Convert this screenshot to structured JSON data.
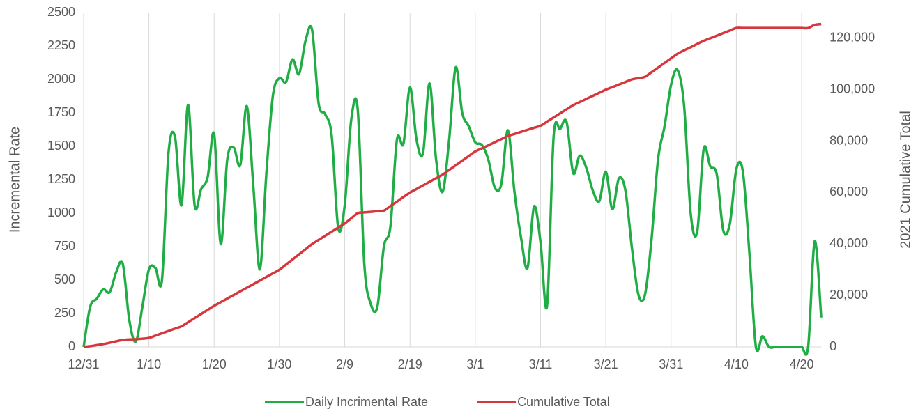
{
  "chart_data": {
    "type": "line",
    "categories": [
      "12/31",
      null,
      null,
      null,
      null,
      null,
      null,
      null,
      null,
      null,
      "1/10",
      null,
      null,
      null,
      null,
      null,
      null,
      null,
      null,
      null,
      "1/20",
      null,
      null,
      null,
      null,
      null,
      null,
      null,
      null,
      null,
      "1/30",
      null,
      null,
      null,
      null,
      null,
      null,
      null,
      null,
      null,
      "2/9",
      null,
      null,
      null,
      null,
      null,
      null,
      null,
      null,
      null,
      "2/19",
      null,
      null,
      null,
      null,
      null,
      null,
      null,
      null,
      null,
      "3/1",
      null,
      null,
      null,
      null,
      null,
      null,
      null,
      null,
      null,
      "3/11",
      null,
      null,
      null,
      null,
      null,
      null,
      null,
      null,
      null,
      "3/21",
      null,
      null,
      null,
      null,
      null,
      null,
      null,
      null,
      null,
      "3/31",
      null,
      null,
      null,
      null,
      null,
      null,
      null,
      null,
      null,
      "4/10",
      null,
      null,
      null,
      null,
      null,
      null,
      null,
      null,
      null,
      "4/20",
      null,
      null,
      null
    ],
    "series": [
      {
        "name": "Daily Incrimental Rate",
        "color": "#21ad45",
        "axis": "y",
        "values": [
          0,
          300,
          360,
          430,
          410,
          560,
          620,
          200,
          40,
          300,
          580,
          590,
          500,
          1450,
          1570,
          1060,
          1810,
          1060,
          1180,
          1270,
          1590,
          770,
          1400,
          1490,
          1360,
          1800,
          1200,
          580,
          1300,
          1880,
          2010,
          1980,
          2150,
          2040,
          2290,
          2370,
          1820,
          1740,
          1580,
          890,
          1060,
          1700,
          1770,
          620,
          320,
          300,
          750,
          900,
          1550,
          1520,
          1940,
          1550,
          1450,
          1970,
          1400,
          1160,
          1550,
          2090,
          1750,
          1650,
          1530,
          1510,
          1400,
          1190,
          1220,
          1620,
          1160,
          820,
          590,
          1050,
          780,
          310,
          1570,
          1630,
          1680,
          1300,
          1430,
          1340,
          1170,
          1090,
          1310,
          1030,
          1260,
          1170,
          740,
          390,
          390,
          800,
          1400,
          1650,
          1960,
          2070,
          1800,
          1000,
          860,
          1480,
          1350,
          1290,
          870,
          920,
          1330,
          1310,
          700,
          0,
          80,
          0,
          0,
          0,
          0,
          0,
          0,
          0,
          790,
          220
        ]
      },
      {
        "name": "Cumulative Total",
        "color": "#d5373d",
        "axis": "y2",
        "values": [
          0,
          300,
          700,
          1100,
          1600,
          2200,
          2700,
          2900,
          3000,
          3200,
          3500,
          4400,
          5300,
          6200,
          7100,
          8000,
          9600,
          11200,
          12800,
          14400,
          16000,
          17400,
          18800,
          20200,
          21600,
          23000,
          24400,
          25800,
          27200,
          28600,
          30000,
          32000,
          34000,
          36000,
          38000,
          40000,
          41600,
          43200,
          44800,
          46400,
          48000,
          50000,
          52000,
          52300,
          52500,
          52800,
          53000,
          54800,
          56500,
          58300,
          60000,
          61400,
          62800,
          64200,
          65600,
          67000,
          68800,
          70600,
          72400,
          74200,
          76000,
          77200,
          78400,
          79600,
          80800,
          82000,
          82800,
          83600,
          84400,
          85200,
          86000,
          87600,
          89200,
          90800,
          92400,
          94000,
          95200,
          96400,
          97600,
          98800,
          100000,
          101000,
          102000,
          103000,
          104000,
          104500,
          105000,
          106800,
          108600,
          110400,
          112200,
          114000,
          115300,
          116500,
          117800,
          119000,
          120000,
          121000,
          122000,
          123000,
          124000,
          124000,
          124000,
          124000,
          124000,
          124000,
          124000,
          124000,
          124000,
          124000,
          124000,
          124000,
          125200,
          125500
        ]
      }
    ],
    "ylabel": "Incremental Rate",
    "y2label": "2021 Cumulative Total",
    "ylim": [
      0,
      2500
    ],
    "yticks": [
      0,
      250,
      500,
      750,
      1000,
      1250,
      1500,
      1750,
      2000,
      2250,
      2500
    ],
    "y2lim": [
      0,
      130000
    ],
    "y2ticks": [
      0,
      {
        "value": 20000,
        "label": "20,000"
      },
      {
        "value": 40000,
        "label": "40,000"
      },
      {
        "value": 60000,
        "label": "60,000"
      },
      {
        "value": 80000,
        "label": "80,000"
      },
      {
        "value": 100000,
        "label": "100,000"
      },
      {
        "value": 120000,
        "label": "120,000"
      }
    ],
    "grid": "x",
    "legend": "bottom"
  }
}
